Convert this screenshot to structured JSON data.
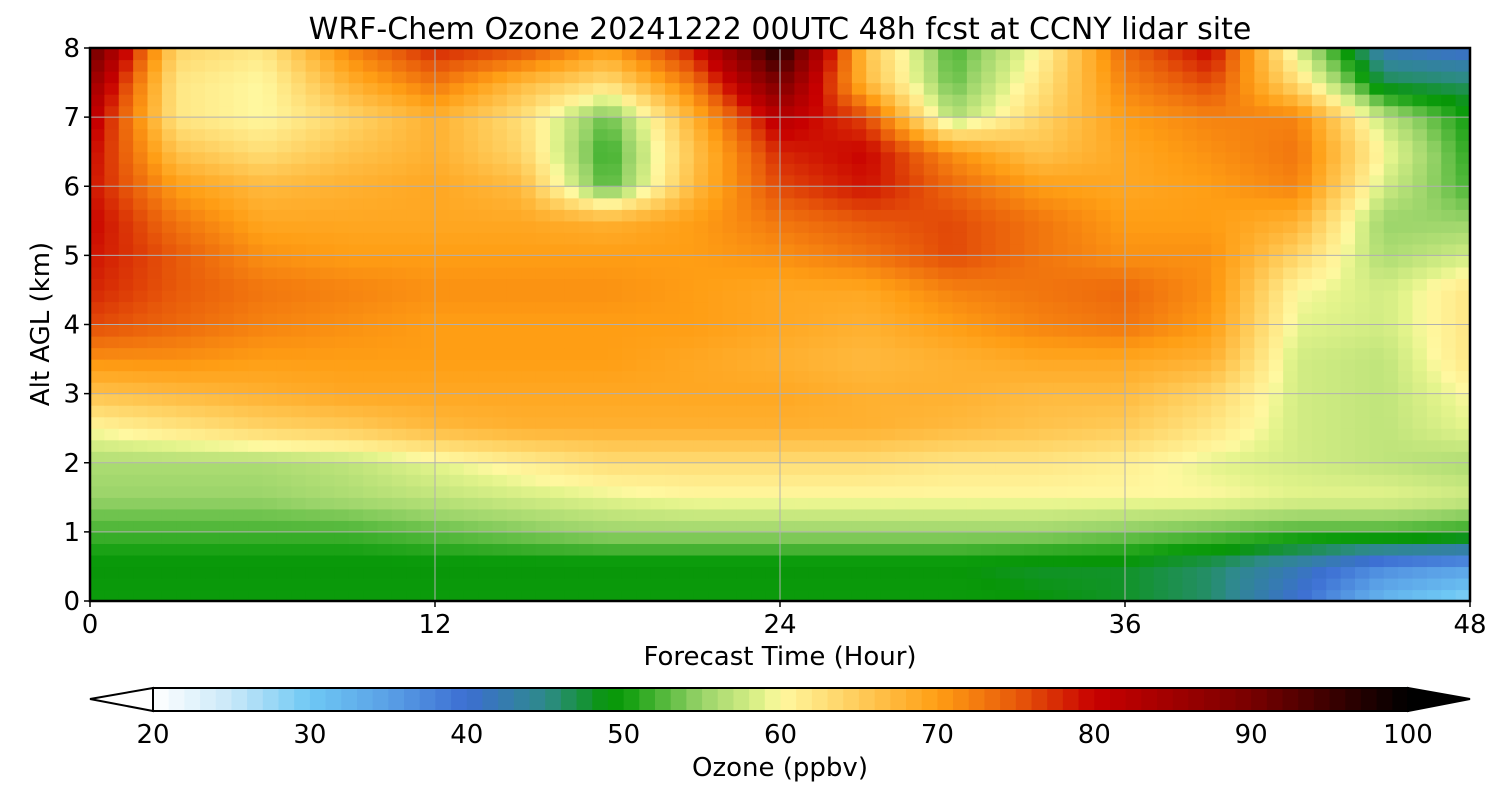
{
  "chart_data": {
    "type": "heatmap",
    "title": "WRF-Chem Ozone  20241222 00UTC 48h fcst at CCNY lidar site",
    "xlabel": "Forecast Time (Hour)",
    "ylabel": "Alt AGL (km)",
    "xlim": [
      0,
      48
    ],
    "ylim": [
      0,
      8
    ],
    "xticks": [
      "0",
      "12",
      "24",
      "36",
      "48"
    ],
    "yticks": [
      "0",
      "1",
      "2",
      "3",
      "4",
      "5",
      "6",
      "7",
      "8"
    ],
    "grid": true,
    "x": [
      0,
      3,
      6,
      9,
      12,
      15,
      18,
      21,
      24,
      27,
      30,
      33,
      36,
      39,
      42,
      45,
      48
    ],
    "y": [
      0,
      0.5,
      1,
      1.5,
      2,
      2.5,
      3,
      3.5,
      4,
      4.5,
      5,
      5.5,
      6,
      6.5,
      7,
      7.5,
      8
    ],
    "z": [
      [
        50,
        50,
        50,
        50,
        50,
        50,
        50,
        50,
        50,
        50,
        50,
        49,
        48,
        46,
        40,
        32,
        28
      ],
      [
        49,
        49,
        49,
        49,
        49,
        49,
        49,
        49,
        49,
        49,
        49,
        48,
        48,
        46,
        42,
        37,
        35
      ],
      [
        52,
        52,
        52,
        52,
        53,
        54,
        55,
        55,
        55,
        55,
        55,
        55,
        54,
        53,
        52,
        52,
        51
      ],
      [
        55,
        55,
        55,
        56,
        57,
        58,
        59,
        60,
        60,
        60,
        60,
        60,
        60,
        60,
        59,
        59,
        58
      ],
      [
        56,
        56,
        56,
        57,
        59,
        61,
        63,
        63,
        63,
        63,
        62,
        62,
        61,
        59,
        58,
        57,
        56
      ],
      [
        60,
        62,
        64,
        65,
        67,
        68,
        68,
        68,
        68,
        68,
        67,
        66,
        65,
        62,
        58,
        57,
        59
      ],
      [
        66,
        67,
        68,
        69,
        69,
        69,
        69,
        69,
        69,
        68,
        68,
        67,
        67,
        64,
        58,
        57,
        60
      ],
      [
        71,
        71,
        70,
        70,
        70,
        70,
        70,
        69,
        68,
        67,
        68,
        69,
        69,
        68,
        58,
        57,
        62
      ],
      [
        76,
        74,
        72,
        71,
        70,
        70,
        70,
        70,
        69,
        68,
        70,
        72,
        73,
        70,
        59,
        58,
        62
      ],
      [
        78,
        75,
        73,
        72,
        71,
        71,
        71,
        70,
        69,
        69,
        72,
        73,
        74,
        71,
        60,
        58,
        62
      ],
      [
        79,
        75,
        71,
        70,
        70,
        70,
        70,
        70,
        71,
        73,
        76,
        73,
        71,
        71,
        64,
        56,
        58
      ],
      [
        80,
        73,
        69,
        69,
        69,
        69,
        68,
        70,
        73,
        75,
        76,
        73,
        70,
        70,
        68,
        55,
        55
      ],
      [
        79,
        70,
        67,
        68,
        69,
        67,
        52,
        67,
        76,
        79,
        74,
        70,
        69,
        70,
        72,
        58,
        52
      ],
      [
        80,
        66,
        63,
        66,
        68,
        64,
        51,
        66,
        78,
        80,
        71,
        66,
        69,
        71,
        73,
        60,
        51
      ],
      [
        82,
        62,
        60,
        64,
        68,
        63,
        53,
        68,
        82,
        76,
        56,
        64,
        70,
        72,
        72,
        57,
        50
      ],
      [
        86,
        62,
        60,
        68,
        73,
        67,
        63,
        73,
        90,
        67,
        53,
        62,
        72,
        76,
        63,
        47,
        46
      ],
      [
        92,
        64,
        62,
        72,
        78,
        76,
        70,
        79,
        98,
        66,
        52,
        60,
        74,
        80,
        58,
        42,
        40
      ]
    ],
    "colorbar": {
      "label": "Ozone  (ppbv)",
      "ticks": [
        "20",
        "30",
        "40",
        "50",
        "60",
        "70",
        "80",
        "90",
        "100"
      ],
      "range": [
        20,
        100
      ],
      "extend": "both",
      "stops": [
        [
          20,
          "#ffffff"
        ],
        [
          25,
          "#c8e8f8"
        ],
        [
          30,
          "#6ec8f4"
        ],
        [
          35,
          "#5aa0e6"
        ],
        [
          40,
          "#3c6ed2"
        ],
        [
          45,
          "#2e8a8a"
        ],
        [
          49,
          "#089608"
        ],
        [
          50,
          "#0c9c0c"
        ],
        [
          55,
          "#9ad46a"
        ],
        [
          59,
          "#e4f48c"
        ],
        [
          60,
          "#fff8a0"
        ],
        [
          65,
          "#ffcc5a"
        ],
        [
          70,
          "#ff9e14"
        ],
        [
          75,
          "#e85a0a"
        ],
        [
          80,
          "#c80000"
        ],
        [
          90,
          "#780000"
        ],
        [
          100,
          "#000000"
        ]
      ]
    }
  }
}
